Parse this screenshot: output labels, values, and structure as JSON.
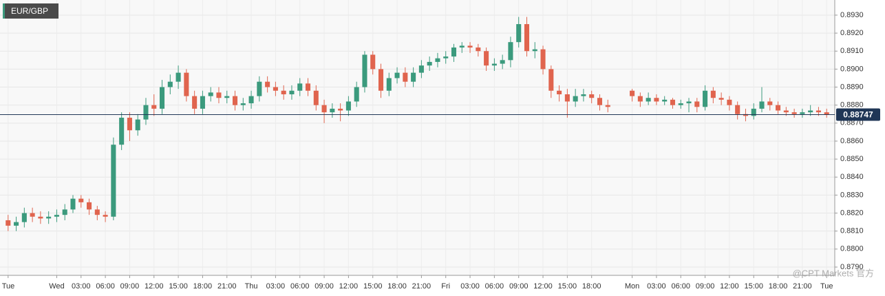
{
  "chart_data": {
    "type": "candlestick",
    "title": "EUR/GBP",
    "x": [
      -6,
      -5,
      -4,
      -3,
      -2,
      -1,
      0,
      1,
      2,
      3,
      4,
      5,
      6,
      7,
      8,
      9,
      10,
      11,
      12,
      13,
      14,
      15,
      16,
      17,
      18,
      19,
      20,
      21,
      22,
      23,
      24,
      25,
      26,
      27,
      28,
      29,
      30,
      31,
      32,
      33,
      34,
      35,
      36,
      37,
      38,
      39,
      40,
      41,
      42,
      43,
      44,
      45,
      46,
      47,
      48,
      49,
      50,
      51,
      52,
      53,
      54,
      55,
      56,
      57,
      58,
      59,
      60,
      61,
      62,
      63,
      64,
      65,
      66,
      67,
      68,
      71,
      72,
      73,
      74,
      75,
      76,
      77,
      78,
      79,
      80,
      81,
      82,
      83,
      84,
      85,
      86,
      87,
      88,
      89,
      90,
      91,
      92,
      93,
      94,
      95
    ],
    "open": [
      0.8816,
      0.8813,
      0.8815,
      0.882,
      0.8818,
      0.8817,
      0.8818,
      0.8819,
      0.8822,
      0.8828,
      0.8826,
      0.8822,
      0.8819,
      0.8818,
      0.8858,
      0.8873,
      0.8866,
      0.8872,
      0.888,
      0.8878,
      0.889,
      0.8893,
      0.8898,
      0.8885,
      0.8878,
      0.8885,
      0.8887,
      0.8884,
      0.8885,
      0.888,
      0.8881,
      0.8885,
      0.8893,
      0.889,
      0.8888,
      0.8886,
      0.8888,
      0.8892,
      0.8888,
      0.888,
      0.8876,
      0.8878,
      0.8877,
      0.8882,
      0.889,
      0.8908,
      0.89,
      0.8888,
      0.8895,
      0.8898,
      0.8893,
      0.8898,
      0.8902,
      0.8904,
      0.8906,
      0.8907,
      0.8912,
      0.8913,
      0.8912,
      0.891,
      0.8902,
      0.8903,
      0.8905,
      0.8915,
      0.8925,
      0.891,
      0.8911,
      0.89,
      0.8888,
      0.8886,
      0.8882,
      0.8885,
      0.8886,
      0.8884,
      0.888,
      0.8888,
      0.8885,
      0.8882,
      0.8884,
      0.8882,
      0.8883,
      0.888,
      0.8881,
      0.8882,
      0.8879,
      0.8888,
      0.8884,
      0.8883,
      0.888,
      0.8875,
      0.8874,
      0.8878,
      0.8882,
      0.888,
      0.8877,
      0.8876,
      0.8875,
      0.8876,
      0.8877,
      0.8876
    ],
    "high": [
      0.8819,
      0.8818,
      0.8823,
      0.8823,
      0.8821,
      0.8821,
      0.8822,
      0.8825,
      0.883,
      0.883,
      0.8828,
      0.8824,
      0.8821,
      0.8862,
      0.8876,
      0.8876,
      0.8875,
      0.8884,
      0.8886,
      0.8894,
      0.8897,
      0.8902,
      0.89,
      0.8888,
      0.8888,
      0.889,
      0.889,
      0.8888,
      0.8888,
      0.8884,
      0.8888,
      0.8896,
      0.8896,
      0.8893,
      0.8891,
      0.8891,
      0.8895,
      0.8895,
      0.8891,
      0.8883,
      0.8881,
      0.8881,
      0.8885,
      0.8893,
      0.891,
      0.891,
      0.8903,
      0.8898,
      0.8901,
      0.8901,
      0.8901,
      0.8905,
      0.8907,
      0.8909,
      0.891,
      0.8914,
      0.8915,
      0.8915,
      0.8914,
      0.8912,
      0.8906,
      0.8908,
      0.8918,
      0.8929,
      0.8929,
      0.8915,
      0.8913,
      0.8902,
      0.8891,
      0.8889,
      0.8889,
      0.8889,
      0.8888,
      0.8886,
      0.8883,
      0.8889,
      0.8887,
      0.8887,
      0.8886,
      0.8885,
      0.8884,
      0.8883,
      0.8884,
      0.8884,
      0.8891,
      0.889,
      0.8887,
      0.8885,
      0.8882,
      0.8878,
      0.8881,
      0.889,
      0.8884,
      0.8882,
      0.8879,
      0.8878,
      0.8878,
      0.888,
      0.8879,
      0.8878
    ],
    "low": [
      0.881,
      0.881,
      0.8812,
      0.8815,
      0.8814,
      0.8814,
      0.8815,
      0.8816,
      0.882,
      0.8823,
      0.8819,
      0.8816,
      0.8815,
      0.8816,
      0.8855,
      0.886,
      0.8863,
      0.8869,
      0.8874,
      0.8875,
      0.8886,
      0.8889,
      0.8882,
      0.8875,
      0.8875,
      0.8882,
      0.8881,
      0.8881,
      0.8877,
      0.8877,
      0.8878,
      0.8882,
      0.8887,
      0.8885,
      0.8883,
      0.8883,
      0.8885,
      0.8885,
      0.8877,
      0.887,
      0.8873,
      0.8871,
      0.8874,
      0.8879,
      0.8887,
      0.8897,
      0.8884,
      0.8885,
      0.8892,
      0.889,
      0.889,
      0.8895,
      0.8899,
      0.8901,
      0.8903,
      0.8904,
      0.8909,
      0.8909,
      0.8907,
      0.8899,
      0.8899,
      0.89,
      0.8901,
      0.8912,
      0.8907,
      0.8906,
      0.8897,
      0.8884,
      0.8882,
      0.8873,
      0.8879,
      0.8882,
      0.8881,
      0.8877,
      0.8876,
      0.8882,
      0.8879,
      0.888,
      0.888,
      0.888,
      0.8878,
      0.8878,
      0.8876,
      0.8876,
      0.8877,
      0.8881,
      0.888,
      0.8877,
      0.8872,
      0.8871,
      0.8872,
      0.8876,
      0.8877,
      0.8875,
      0.8874,
      0.8873,
      0.8873,
      0.8874,
      0.8874,
      0.8873
    ],
    "close": [
      0.8813,
      0.8815,
      0.882,
      0.8818,
      0.8817,
      0.8818,
      0.8819,
      0.8822,
      0.8828,
      0.8826,
      0.8822,
      0.8819,
      0.8818,
      0.8858,
      0.8873,
      0.8866,
      0.8872,
      0.888,
      0.8878,
      0.889,
      0.8893,
      0.8898,
      0.8885,
      0.8878,
      0.8885,
      0.8887,
      0.8884,
      0.8885,
      0.888,
      0.8881,
      0.8885,
      0.8893,
      0.889,
      0.8888,
      0.8886,
      0.8888,
      0.8892,
      0.8888,
      0.888,
      0.8876,
      0.8878,
      0.8877,
      0.8882,
      0.889,
      0.8908,
      0.89,
      0.8888,
      0.8895,
      0.8898,
      0.8893,
      0.8898,
      0.8902,
      0.8904,
      0.8906,
      0.8907,
      0.8912,
      0.8913,
      0.8912,
      0.891,
      0.8902,
      0.8903,
      0.8905,
      0.8915,
      0.8925,
      0.891,
      0.8911,
      0.89,
      0.8888,
      0.8886,
      0.8882,
      0.8885,
      0.8886,
      0.8884,
      0.888,
      0.8879,
      0.8885,
      0.8882,
      0.8884,
      0.8882,
      0.8883,
      0.888,
      0.8881,
      0.8882,
      0.8879,
      0.8888,
      0.8884,
      0.8883,
      0.888,
      0.8875,
      0.8874,
      0.8878,
      0.8882,
      0.888,
      0.8877,
      0.8876,
      0.8875,
      0.8876,
      0.8877,
      0.8876,
      0.88747
    ],
    "up_color": "#3b9a7d",
    "down_color": "#e0644e",
    "last_price": 0.88747,
    "last_price_color": "#1f3656",
    "xlim": [
      -7,
      96
    ],
    "xticks": [
      {
        "value": -6,
        "label": "Tue"
      },
      {
        "value": 0,
        "label": "Wed"
      },
      {
        "value": 3,
        "label": "03:00"
      },
      {
        "value": 6,
        "label": "06:00"
      },
      {
        "value": 9,
        "label": "09:00"
      },
      {
        "value": 12,
        "label": "12:00"
      },
      {
        "value": 15,
        "label": "15:00"
      },
      {
        "value": 18,
        "label": "18:00"
      },
      {
        "value": 21,
        "label": "21:00"
      },
      {
        "value": 24,
        "label": "Thu"
      },
      {
        "value": 27,
        "label": "03:00"
      },
      {
        "value": 30,
        "label": "06:00"
      },
      {
        "value": 33,
        "label": "09:00"
      },
      {
        "value": 36,
        "label": "12:00"
      },
      {
        "value": 39,
        "label": "15:00"
      },
      {
        "value": 42,
        "label": "18:00"
      },
      {
        "value": 45,
        "label": "21:00"
      },
      {
        "value": 48,
        "label": "Fri"
      },
      {
        "value": 51,
        "label": "03:00"
      },
      {
        "value": 54,
        "label": "06:00"
      },
      {
        "value": 57,
        "label": "09:00"
      },
      {
        "value": 60,
        "label": "12:00"
      },
      {
        "value": 63,
        "label": "15:00"
      },
      {
        "value": 66,
        "label": "18:00"
      },
      {
        "value": 71,
        "label": "Mon"
      },
      {
        "value": 74,
        "label": "03:00"
      },
      {
        "value": 77,
        "label": "06:00"
      },
      {
        "value": 80,
        "label": "09:00"
      },
      {
        "value": 83,
        "label": "12:00"
      },
      {
        "value": 86,
        "label": "15:00"
      },
      {
        "value": 89,
        "label": "18:00"
      },
      {
        "value": 92,
        "label": "21:00"
      },
      {
        "value": 95,
        "label": "Tue"
      }
    ],
    "ylim": [
      0.87854,
      0.89384
    ],
    "yticks": [
      {
        "value": 0.879,
        "label": "0.8790"
      },
      {
        "value": 0.88,
        "label": "0.8800"
      },
      {
        "value": 0.881,
        "label": "0.8810"
      },
      {
        "value": 0.882,
        "label": "0.8820"
      },
      {
        "value": 0.883,
        "label": "0.8830"
      },
      {
        "value": 0.884,
        "label": "0.8840"
      },
      {
        "value": 0.885,
        "label": "0.8850"
      },
      {
        "value": 0.886,
        "label": "0.8860"
      },
      {
        "value": 0.887,
        "label": "0.8870"
      },
      {
        "value": 0.888,
        "label": "0.8880"
      },
      {
        "value": 0.889,
        "label": "0.8890"
      },
      {
        "value": 0.89,
        "label": "0.8900"
      },
      {
        "value": 0.891,
        "label": "0.8910"
      },
      {
        "value": 0.892,
        "label": "0.8920"
      },
      {
        "value": 0.893,
        "label": "0.8930"
      }
    ],
    "grid": true,
    "watermark": "@CPT Markets 官方"
  }
}
